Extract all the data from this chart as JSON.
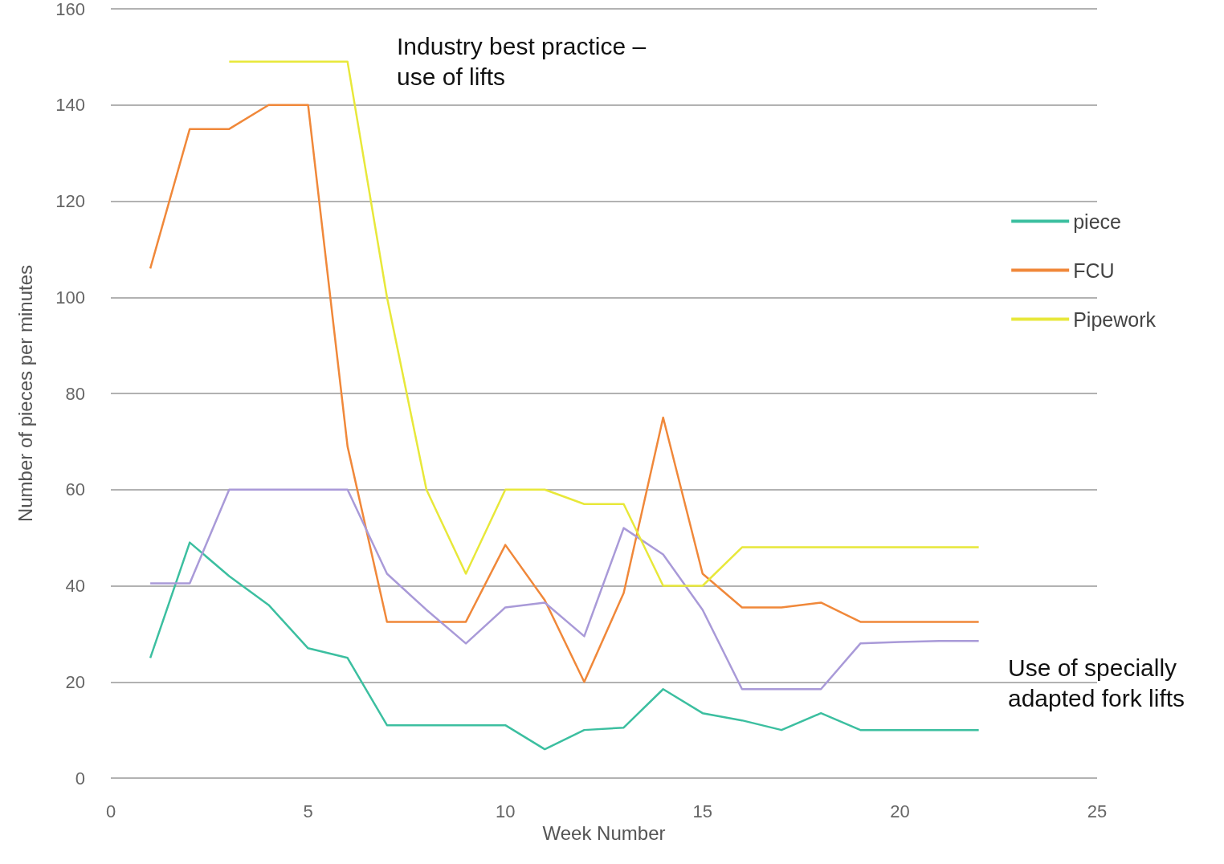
{
  "chart_data": {
    "type": "line",
    "xlabel": "Week Number",
    "ylabel": "Number of pieces per minutes",
    "x": [
      1,
      2,
      3,
      4,
      5,
      6,
      7,
      8,
      9,
      10,
      11,
      12,
      13,
      14,
      15,
      16,
      17,
      18,
      19,
      20,
      21,
      22
    ],
    "series": [
      {
        "name": "piece",
        "color": "#3cbfa0",
        "values": [
          25,
          49,
          42,
          36,
          27,
          25,
          11,
          11,
          11,
          11,
          6,
          10,
          10.5,
          18.5,
          13.5,
          12,
          10,
          13.5,
          10,
          10,
          10,
          10
        ]
      },
      {
        "name": "FCU",
        "color": "#f0883a",
        "values": [
          106,
          135,
          135,
          140,
          140,
          69,
          32.5,
          32.5,
          32.5,
          48.5,
          37,
          20,
          38.5,
          75,
          42.5,
          35.5,
          35.5,
          36.5,
          32.5,
          32.5,
          32.5,
          32.5
        ]
      },
      {
        "color": "#a99ad8",
        "values": [
          40.5,
          40.5,
          60,
          60,
          60,
          60,
          42.5,
          35,
          28,
          35.5,
          36.5,
          29.5,
          52,
          46.5,
          35,
          18.5,
          18.5,
          18.5,
          28,
          28.3,
          28.5,
          28.5
        ]
      },
      {
        "name": "Pipework",
        "color": "#e8e83a",
        "values": [
          null,
          null,
          149,
          149,
          149,
          149,
          100,
          60,
          42.5,
          60,
          60,
          57,
          57,
          40,
          40,
          48,
          48,
          48,
          48,
          48,
          48,
          48
        ]
      }
    ],
    "xlim": [
      0,
      25
    ],
    "xticks": [
      0,
      5,
      10,
      15,
      20,
      25
    ],
    "ylim": [
      0,
      160
    ],
    "yticks": [
      0,
      20,
      40,
      60,
      80,
      100,
      120,
      140,
      160
    ],
    "grid": "y",
    "legend": "right",
    "marker": "none",
    "line_style": "solid",
    "annotations": [
      "Industry best practice – use of lifts",
      "Use of specially adapted fork lifts"
    ]
  }
}
